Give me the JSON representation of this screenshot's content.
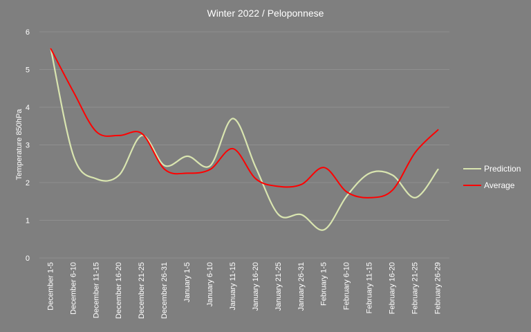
{
  "chart_data": {
    "type": "line",
    "title": "Winter 2022 / Peloponnese",
    "xlabel": "",
    "ylabel": "Temperature  850hPa",
    "ylim": [
      0,
      6
    ],
    "yticks": [
      "0",
      "1",
      "2",
      "3",
      "4",
      "5",
      "6"
    ],
    "grid": true,
    "legend_position": "right",
    "smooth": true,
    "categories": [
      "December 1-5",
      "December 6-10",
      "December 11-15",
      "December 16-20",
      "December 21-25",
      "December 26-31",
      "January 1-5",
      "January 6-10",
      "January 11-15",
      "January 16-20",
      "January 21-25",
      "January 26-31",
      "February 1-5",
      "February 6-10",
      "February 11-15",
      "February 16-20",
      "February 21-25",
      "February 26-29"
    ],
    "series": [
      {
        "name": "Prediction",
        "color": "#d9e5b0",
        "values": [
          5.55,
          2.7,
          2.1,
          2.2,
          3.25,
          2.45,
          2.7,
          2.45,
          3.7,
          2.4,
          1.15,
          1.15,
          0.75,
          1.65,
          2.25,
          2.2,
          1.6,
          2.35
        ]
      },
      {
        "name": "Average",
        "color": "#ff0000",
        "values": [
          5.55,
          4.4,
          3.35,
          3.25,
          3.3,
          2.35,
          2.25,
          2.35,
          2.9,
          2.1,
          1.9,
          1.95,
          2.4,
          1.75,
          1.6,
          1.8,
          2.8,
          3.4
        ]
      }
    ]
  }
}
